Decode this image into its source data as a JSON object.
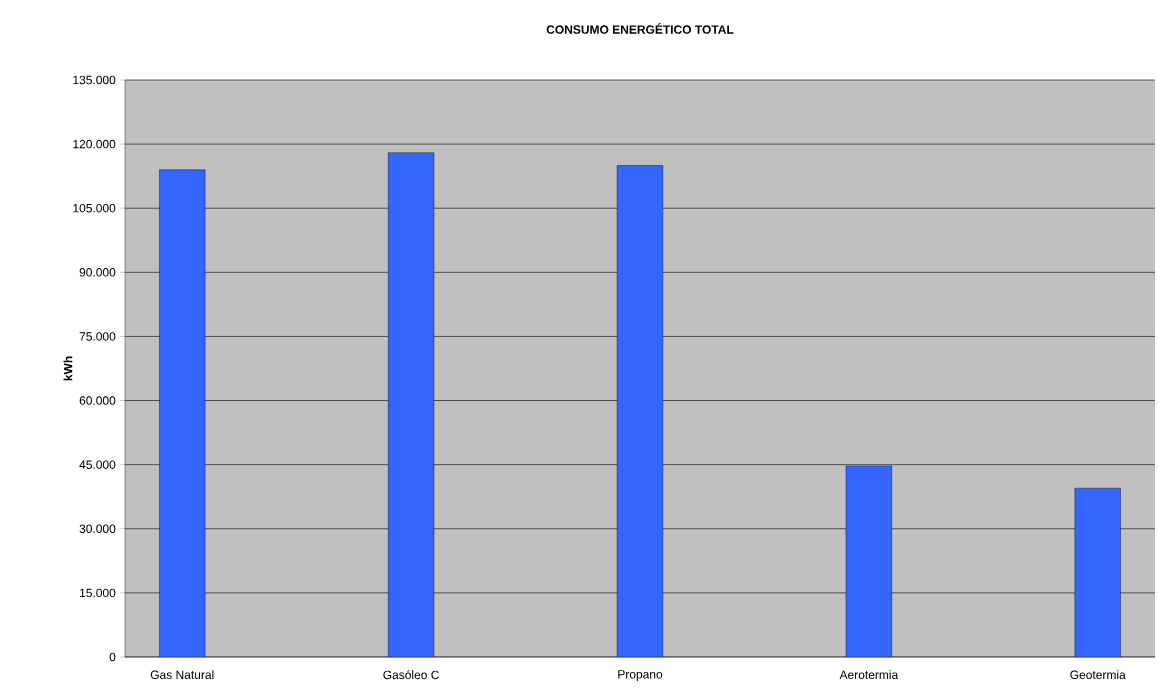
{
  "chart_data": {
    "type": "bar",
    "title": "CONSUMO ENERGÉTICO TOTAL",
    "ylabel": "kWh",
    "categories": [
      "Gas Natural",
      null,
      "Gasóleo C",
      null,
      "Propano",
      null,
      "Aerotermia",
      null,
      "Geotermia"
    ],
    "values": [
      114000,
      null,
      118000,
      null,
      115000,
      null,
      44700,
      null,
      39500
    ],
    "color": "#3366ff",
    "ylim": [
      0,
      135000
    ],
    "yticks": [
      0,
      {
        "value": 15000,
        "label": "15.000"
      },
      {
        "value": 30000,
        "label": "30.000"
      },
      {
        "value": 45000,
        "label": "45.000"
      },
      {
        "value": 60000,
        "label": "60.000"
      },
      {
        "value": 75000,
        "label": "75.000"
      },
      {
        "value": 90000,
        "label": "90.000"
      },
      {
        "value": 105000,
        "label": "105.000"
      },
      {
        "value": 120000,
        "label": "120.000"
      },
      {
        "value": 135000,
        "label": "135.000"
      }
    ],
    "grid": "y"
  }
}
